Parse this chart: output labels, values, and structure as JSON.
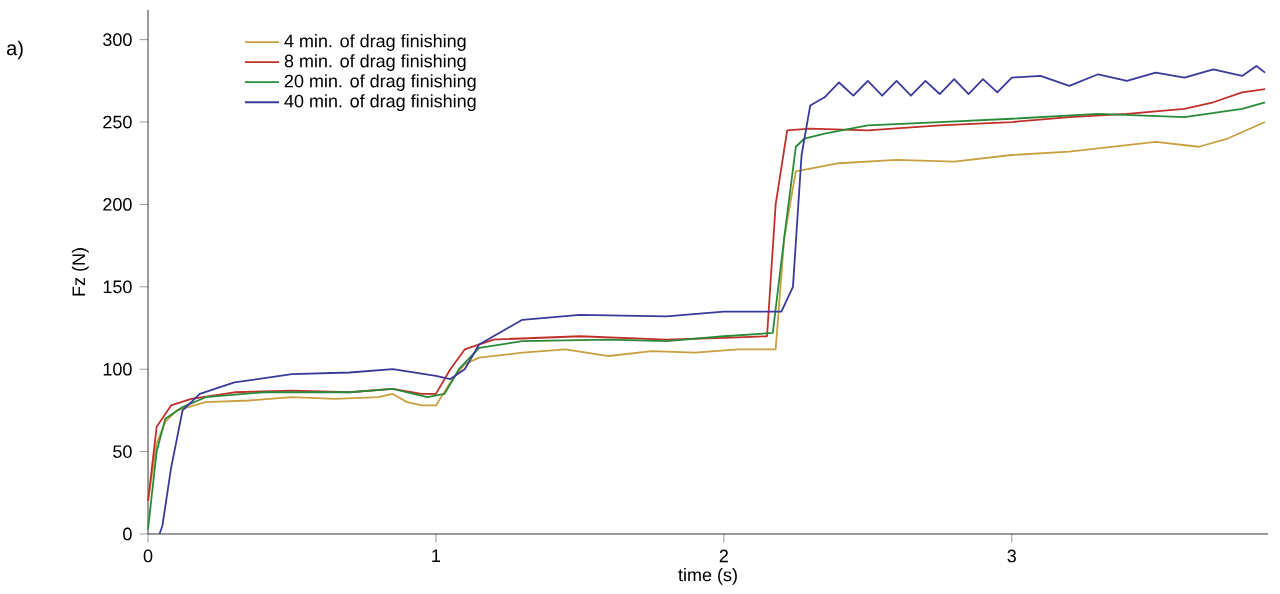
{
  "chart_data": {
    "type": "line",
    "xlabel": "time (s)",
    "ylabel": "Fz (N)",
    "annotations": [
      "a)"
    ],
    "xlim": [
      0,
      3.89
    ],
    "ylim": [
      0,
      318
    ],
    "xticks": [
      0,
      1,
      2,
      3
    ],
    "yticks": [
      0,
      50,
      100,
      150,
      200,
      250,
      300
    ],
    "grid": false,
    "legend": "top left",
    "marker": "none",
    "line_style": "solid",
    "series": [
      {
        "name": "4 min. of drag finishing",
        "color": "#c8a040",
        "x": [
          0.0,
          0.03,
          0.06,
          0.1,
          0.2,
          0.35,
          0.5,
          0.65,
          0.8,
          0.85,
          0.9,
          0.95,
          1.0,
          1.05,
          1.1,
          1.15,
          1.3,
          1.45,
          1.6,
          1.75,
          1.9,
          2.05,
          2.18,
          2.21,
          2.25,
          2.4,
          2.6,
          2.8,
          3.0,
          3.2,
          3.4,
          3.5,
          3.65,
          3.75,
          3.88
        ],
        "values": [
          20,
          55,
          68,
          75,
          80,
          81,
          83,
          82,
          83,
          85,
          80,
          78,
          78,
          92,
          103,
          107,
          110,
          112,
          108,
          111,
          110,
          112,
          112,
          180,
          220,
          225,
          227,
          226,
          230,
          232,
          236,
          238,
          235,
          240,
          250
        ]
      },
      {
        "name": "8 min. of drag finishing",
        "color": "#c0302a",
        "x": [
          0.0,
          0.03,
          0.08,
          0.15,
          0.3,
          0.5,
          0.7,
          0.85,
          0.95,
          1.0,
          1.05,
          1.1,
          1.2,
          1.5,
          1.8,
          2.0,
          2.15,
          2.18,
          2.22,
          2.3,
          2.5,
          2.75,
          3.0,
          3.2,
          3.4,
          3.6,
          3.7,
          3.8,
          3.88
        ],
        "values": [
          20,
          65,
          78,
          82,
          86,
          87,
          86,
          88,
          85,
          85,
          100,
          112,
          118,
          120,
          118,
          119,
          120,
          200,
          245,
          246,
          245,
          248,
          250,
          253,
          255,
          258,
          262,
          268,
          270
        ]
      },
      {
        "name": "20 min. of drag finishing",
        "color": "#2a8a3a",
        "x": [
          0.0,
          0.03,
          0.06,
          0.12,
          0.2,
          0.4,
          0.7,
          0.85,
          0.97,
          1.03,
          1.08,
          1.15,
          1.3,
          1.6,
          1.8,
          2.0,
          2.17,
          2.21,
          2.25,
          2.28,
          2.35,
          2.5,
          2.75,
          3.0,
          3.3,
          3.6,
          3.8,
          3.88
        ],
        "values": [
          3,
          50,
          70,
          77,
          83,
          86,
          86,
          88,
          83,
          85,
          100,
          113,
          117,
          118,
          117,
          120,
          122,
          180,
          235,
          240,
          243,
          248,
          250,
          252,
          255,
          253,
          258,
          262
        ]
      },
      {
        "name": "40 min. of drag finishing",
        "color": "#3a3a9a",
        "x": [
          0.04,
          0.05,
          0.08,
          0.12,
          0.18,
          0.3,
          0.5,
          0.7,
          0.85,
          1.0,
          1.05,
          1.1,
          1.15,
          1.3,
          1.5,
          1.8,
          2.0,
          2.2,
          2.24,
          2.27,
          2.3,
          2.35,
          2.4,
          2.45,
          2.5,
          2.55,
          2.6,
          2.65,
          2.7,
          2.75,
          2.8,
          2.85,
          2.9,
          2.95,
          3.0,
          3.1,
          3.2,
          3.3,
          3.4,
          3.5,
          3.6,
          3.7,
          3.8,
          3.85,
          3.88
        ],
        "values": [
          0,
          5,
          40,
          75,
          85,
          92,
          97,
          98,
          100,
          96,
          94,
          100,
          115,
          130,
          133,
          132,
          135,
          135,
          150,
          230,
          260,
          265,
          274,
          266,
          275,
          266,
          275,
          266,
          275,
          267,
          276,
          267,
          276,
          268,
          277,
          278,
          272,
          279,
          275,
          280,
          277,
          282,
          278,
          284,
          280
        ]
      }
    ]
  }
}
